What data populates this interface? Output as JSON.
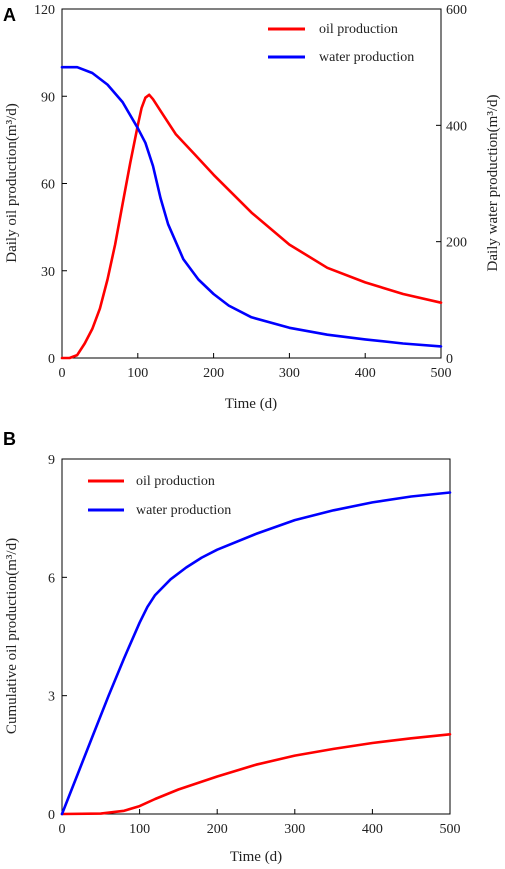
{
  "chart_data": [
    {
      "panel": "A",
      "type": "line",
      "xlabel": "Time (d)",
      "ylabel_left": "Daily oil production(m³/d)",
      "ylabel_right": "Daily water production(m³/d)",
      "xlim": [
        0,
        500
      ],
      "ylim_left": [
        0,
        120
      ],
      "ylim_right": [
        0,
        600
      ],
      "xticks": [
        0,
        100,
        200,
        300,
        400,
        500
      ],
      "yticks_left": [
        0,
        30,
        60,
        90,
        120
      ],
      "yticks_right": [
        0,
        200,
        400,
        600
      ],
      "grid": false,
      "legend_position": "top-right",
      "series": [
        {
          "name": "oil production",
          "color": "#ff0000",
          "axis": "left",
          "x": [
            0,
            10,
            20,
            30,
            40,
            50,
            60,
            70,
            80,
            90,
            100,
            105,
            110,
            115,
            120,
            130,
            150,
            175,
            200,
            250,
            300,
            350,
            400,
            450,
            500
          ],
          "y": [
            0,
            0,
            1,
            5,
            10,
            17,
            27,
            39,
            53,
            67,
            80,
            86,
            89.5,
            90.5,
            89,
            85,
            77,
            70,
            63,
            50,
            39,
            31,
            26,
            22,
            19
          ]
        },
        {
          "name": "water production",
          "color": "#0000ff",
          "axis": "right",
          "x": [
            0,
            20,
            40,
            60,
            80,
            100,
            110,
            120,
            130,
            140,
            160,
            180,
            200,
            220,
            250,
            300,
            350,
            400,
            450,
            500
          ],
          "y": [
            500,
            500,
            490,
            470,
            440,
            395,
            370,
            330,
            275,
            230,
            170,
            135,
            110,
            90,
            70,
            52,
            40,
            32,
            25,
            20
          ]
        }
      ]
    },
    {
      "panel": "B",
      "type": "line",
      "xlabel": "Time (d)",
      "ylabel": "Cumulative oil production(m³/d)",
      "xlim": [
        0,
        500
      ],
      "ylim": [
        0,
        9
      ],
      "xticks": [
        0,
        100,
        200,
        300,
        400,
        500
      ],
      "yticks": [
        0,
        3,
        6,
        9
      ],
      "grid": false,
      "legend_position": "top-left",
      "series": [
        {
          "name": "oil production",
          "color": "#ff0000",
          "x": [
            0,
            50,
            80,
            100,
            120,
            150,
            200,
            250,
            300,
            350,
            400,
            450,
            500
          ],
          "y": [
            0,
            0.01,
            0.08,
            0.2,
            0.38,
            0.62,
            0.95,
            1.25,
            1.48,
            1.65,
            1.8,
            1.92,
            2.02
          ]
        },
        {
          "name": "water production",
          "color": "#0000ff",
          "x": [
            0,
            20,
            40,
            60,
            80,
            100,
            110,
            120,
            140,
            160,
            180,
            200,
            250,
            300,
            350,
            400,
            450,
            500
          ],
          "y": [
            0,
            1.0,
            2.0,
            3.0,
            3.95,
            4.85,
            5.25,
            5.55,
            5.95,
            6.25,
            6.5,
            6.7,
            7.1,
            7.45,
            7.7,
            7.9,
            8.05,
            8.15
          ]
        }
      ]
    }
  ]
}
